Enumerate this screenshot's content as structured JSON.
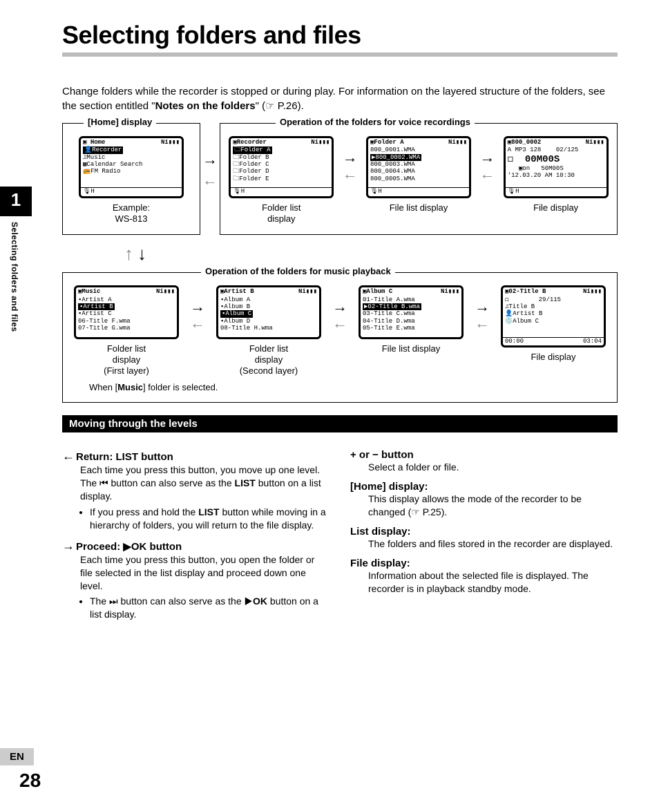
{
  "page": {
    "title": "Selecting folders and files",
    "number": "28",
    "lang_badge": "EN",
    "chapter_num": "1",
    "side_label": "Selecting folders and files"
  },
  "intro": {
    "text_a": "Change folders while the recorder is stopped or during play. For information on the layered structure of the folders, see the section entitled \"",
    "bold": "Notes on the folders",
    "text_b": "\" (☞ P.26)."
  },
  "section_home": {
    "legend_a": "[Home] display",
    "legend_b": "Operation of the folders for voice recordings",
    "caption_1a": "Example:",
    "caption_1b": "WS-813",
    "caption_2a": "Folder list",
    "caption_2b": "display",
    "caption_3": "File list display",
    "caption_4": "File display"
  },
  "section_music": {
    "legend": "Operation of the folders for music playback",
    "caption_1a": "Folder list",
    "caption_1b": "display",
    "caption_1c": "(First layer)",
    "caption_2a": "Folder list",
    "caption_2b": "display",
    "caption_2c": "(Second layer)",
    "caption_3": "File list display",
    "caption_4": "File display",
    "note_a": "When [",
    "note_b": "Music",
    "note_c": "] folder is selected."
  },
  "lcd_home": {
    "title": "Home",
    "batt": "Ni▮▮▮",
    "l1": "Recorder",
    "l2": "♫Music",
    "l3": "▦Calendar Search",
    "l4": "📻FM Radio"
  },
  "lcd_recorder": {
    "title": "Recorder",
    "batt": "Ni▮▮▮",
    "l1": "Folder A",
    "l2": "Folder B",
    "l3": "Folder C",
    "l4": "Folder D",
    "l5": "Folder E"
  },
  "lcd_folderA": {
    "title": "Folder A",
    "batt": "Ni▮▮▮",
    "l1": "800_0001.WMA",
    "l2": "800_0002.WMA",
    "l3": "800_0003.WMA",
    "l4": "800_0004.WMA",
    "l5": "800_0005.WMA"
  },
  "lcd_file": {
    "title": "800_0002",
    "batt": "Ni▮▮▮",
    "fmt": "A MP3 128",
    "count": "02/125",
    "time": "00M00S",
    "dur": "50M00S",
    "date": "'12.03.20 AM 10:30"
  },
  "lcd_music": {
    "title": "Music",
    "batt": "Ni▮▮▮",
    "l1": "Artist A",
    "l2": "Artist B",
    "l3": "Artist C",
    "l4": "06-Title F.wma",
    "l5": "07-Title G.wma"
  },
  "lcd_artist": {
    "title": "Artist B",
    "batt": "Ni▮▮▮",
    "l1": "Album A",
    "l2": "Album B",
    "l3": "Album C",
    "l4": "Album D",
    "l5": "08-Title H.wma"
  },
  "lcd_album": {
    "title": "Album C",
    "batt": "Ni▮▮▮",
    "l1": "01-Title A.wma",
    "l2": "02-Title B.wma",
    "l3": "03-Title C.wma",
    "l4": "04-Title D.wma",
    "l5": "05-Title E.wma"
  },
  "lcd_title": {
    "title": "02-Title B",
    "batt": "Ni▮▮▮",
    "count": "29/115",
    "l_title": "♫Title B",
    "l_artist": "👤Artist B",
    "l_album": "💿Album C",
    "t1": "00:00",
    "t2": "03:04"
  },
  "moving": {
    "bar": "Moving through the levels",
    "left": {
      "h1": "Return: LIST button",
      "p1": "Each time you press this button, you move up one level. The ⏮ button can also serve as the ",
      "p1b": "LIST",
      "p1c": " button on a list display.",
      "bullet1a": "If you press and hold the ",
      "bullet1b": "LIST",
      "bullet1c": " button while moving in a hierarchy of folders, you will return to the file display.",
      "h2": "Proceed: ▶OK button",
      "p2": "Each time you press this button, you open the folder or file selected in the list display and proceed down one level.",
      "bullet2a": "The ⏭ button can also serve as the ▶",
      "bullet2b": "OK",
      "bullet2c": " button on a list display."
    },
    "right": {
      "h1": "+ or − button",
      "p1": "Select a folder or file.",
      "h2": "[Home] display:",
      "p2": "This display allows the mode of the recorder to be changed (☞ P.25).",
      "h3": "List display:",
      "p3": "The folders and files stored in the recorder are displayed.",
      "h4": "File display:",
      "p4": "Information about the selected file is displayed. The recorder is in playback standby mode."
    }
  }
}
